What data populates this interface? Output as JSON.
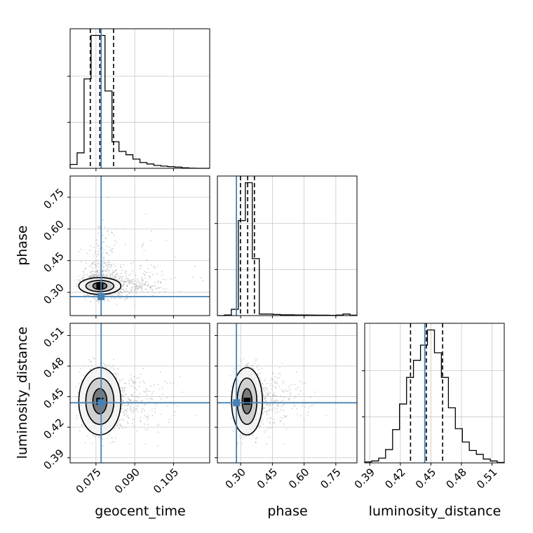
{
  "chart_data": {
    "type": "corner",
    "parameters": [
      "geocent_time",
      "phase",
      "luminosity_distance"
    ],
    "labels": {
      "x": [
        "geocent_time",
        "phase",
        "luminosity_distance"
      ],
      "y": [
        "",
        "phase",
        "luminosity_distance"
      ]
    },
    "ranges": {
      "geocent_time": [
        0.065,
        0.119
      ],
      "phase": [
        0.19,
        0.85
      ],
      "luminosity_distance": [
        0.385,
        0.522
      ]
    },
    "ticks": {
      "geocent_time": {
        "values": [
          0.075,
          0.09,
          0.105
        ],
        "labels": [
          "0.075",
          "0.090",
          "0.105"
        ]
      },
      "phase": {
        "values": [
          0.3,
          0.45,
          0.6,
          0.75
        ],
        "labels": [
          "0.30",
          "0.45",
          "0.60",
          "0.75"
        ]
      },
      "luminosity_distance": {
        "values": [
          0.39,
          0.42,
          0.45,
          0.48,
          0.51
        ],
        "labels": [
          "0.39",
          "0.42",
          "0.45",
          "0.48",
          "0.51"
        ]
      }
    },
    "truths": {
      "geocent_time": 0.077,
      "phase": 0.28,
      "luminosity_distance": 0.444
    },
    "quantiles": {
      "geocent_time": [
        0.0728,
        0.0765,
        0.0818
      ],
      "phase": [
        0.299,
        0.333,
        0.365
      ],
      "luminosity_distance": [
        0.43,
        0.4455,
        0.4615
      ]
    },
    "histograms": {
      "geocent_time": {
        "edges": [
          0.065,
          0.0677,
          0.0704,
          0.0731,
          0.0758,
          0.0785,
          0.0812,
          0.0839,
          0.0866,
          0.0893,
          0.092,
          0.0947,
          0.0974,
          0.1001,
          0.1028,
          0.1055,
          0.1082,
          0.1109,
          0.1136,
          0.1163,
          0.119
        ],
        "counts": [
          0.8,
          3.2,
          18.5,
          27.5,
          27.5,
          16.0,
          5.5,
          3.5,
          2.8,
          1.9,
          1.2,
          0.9,
          0.6,
          0.45,
          0.35,
          0.25,
          0.1,
          0.03,
          0,
          0
        ]
      },
      "phase": {
        "edges": [
          0.19,
          0.223,
          0.256,
          0.289,
          0.322,
          0.355,
          0.388,
          0.421,
          0.454,
          0.487,
          0.52,
          0.553,
          0.586,
          0.619,
          0.652,
          0.685,
          0.718,
          0.751,
          0.784,
          0.817,
          0.85
        ],
        "counts": [
          0,
          0.3,
          3.3,
          50,
          70,
          30,
          0.8,
          0.8,
          0.6,
          0.4,
          0.4,
          0.3,
          0.3,
          0.25,
          0.2,
          0.2,
          0.15,
          0.25,
          0.8,
          0.2
        ]
      },
      "luminosity_distance": {
        "edges": [
          0.385,
          0.3918,
          0.3987,
          0.4055,
          0.4124,
          0.4192,
          0.4261,
          0.4329,
          0.4398,
          0.4466,
          0.4535,
          0.4603,
          0.4672,
          0.474,
          0.4809,
          0.4877,
          0.4946,
          0.5014,
          0.5083,
          0.5151,
          0.522
        ],
        "counts": [
          0.5,
          1,
          2.5,
          7,
          17.5,
          31,
          45,
          54,
          62,
          70,
          58,
          45,
          29,
          18,
          11,
          6.5,
          4.5,
          2,
          1,
          0.2
        ]
      }
    },
    "scatter_distributions": {
      "geocent_time": {
        "center": 0.0765,
        "spread": 0.0035,
        "tail": 0.012
      },
      "phase": {
        "center": 0.33,
        "spread": 0.028,
        "tail": 0.12
      },
      "luminosity_distance": {
        "center": 0.4455,
        "spread": 0.015
      }
    },
    "contour_levels": [
      0.39,
      0.86,
      0.99
    ],
    "grid": true,
    "colors": {
      "truth": "#4682b4",
      "hist": "#000000",
      "quantile": "#000000",
      "scatter": "#b0b0b0",
      "grid": "#c8c8c8"
    }
  }
}
